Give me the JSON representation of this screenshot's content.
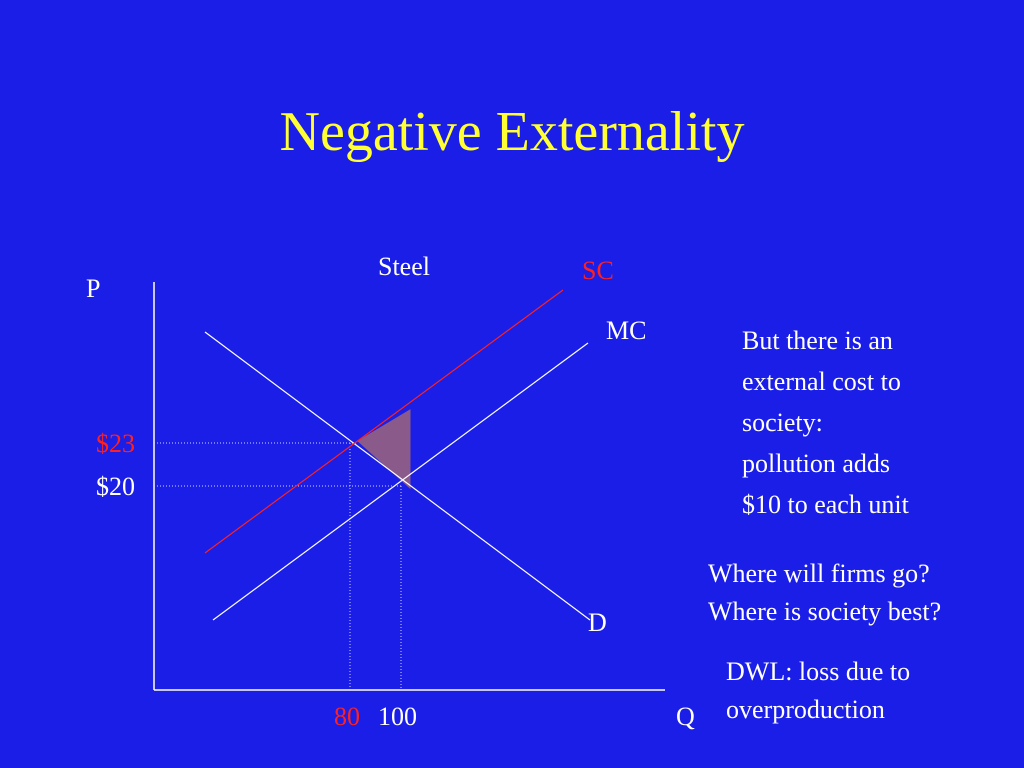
{
  "title": "Negative Externality",
  "diagram": {
    "market_label": "Steel",
    "y_axis_label": "P",
    "x_axis_label": "Q",
    "curves": {
      "social_cost": "SC",
      "marginal_cost": "MC",
      "demand": "D"
    },
    "price_social": "$23",
    "price_private": "$20",
    "qty_social": "80",
    "qty_private": "100"
  },
  "notes": {
    "external_cost": [
      "But there is an",
      "external cost to",
      "society:",
      "pollution adds",
      "$10 to each unit"
    ],
    "questions": [
      "Where will firms go?",
      "Where is society best?"
    ],
    "dwl": [
      "DWL: loss due to",
      "overproduction"
    ]
  },
  "colors": {
    "background": "#1a1ee6",
    "title": "#ffff33",
    "social_cost": "#ff2020",
    "dwl_note": "#ff9933",
    "dwl_fill": "#8a5a8a"
  }
}
